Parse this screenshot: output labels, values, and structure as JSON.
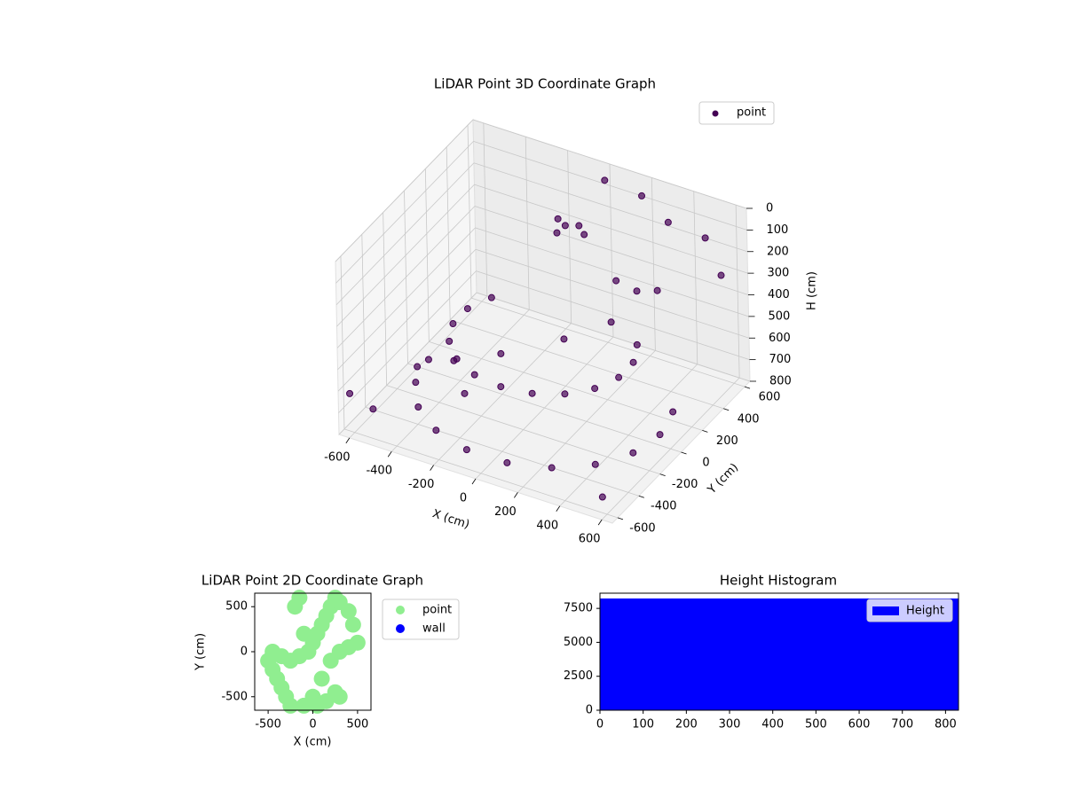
{
  "chart_data": [
    {
      "type": "scatter3d",
      "title": "LiDAR Point 3D Coordinate Graph",
      "xlabel": "X (cm)",
      "ylabel": "Y (cm)",
      "zlabel": "H (cm)",
      "xlim": [
        -650,
        650
      ],
      "ylim": [
        -650,
        650
      ],
      "zlim": [
        0,
        800
      ],
      "z_inverted": true,
      "xticks": [
        -600,
        -400,
        -200,
        0,
        200,
        400,
        600
      ],
      "yticks": [
        -600,
        -400,
        -200,
        0,
        200,
        400,
        600
      ],
      "zticks": [
        0,
        100,
        200,
        300,
        400,
        500,
        600,
        700,
        800
      ],
      "grid": true,
      "legend": "upper right",
      "series": [
        {
          "name": "point",
          "color": "#440154",
          "x": [
            -550,
            -517,
            -421,
            -275,
            -96,
            96,
            275,
            421,
            517,
            550,
            517,
            -346,
            -394,
            -394,
            -346,
            -257,
            -137,
            0,
            137,
            257,
            346,
            394,
            394,
            346,
            -150,
            -100,
            -50,
            -120,
            0,
            0,
            150,
            300,
            450,
            600,
            200,
            350,
            500,
            -600,
            -500,
            600,
            -450,
            -300,
            -200,
            -100,
            100,
            250
          ],
          "y": [
            0,
            -188,
            -354,
            -476,
            -542,
            -542,
            -476,
            -354,
            -188,
            0,
            188,
            200,
            69,
            -69,
            -200,
            -306,
            -376,
            -400,
            -376,
            -306,
            -200,
            -69,
            69,
            200,
            450,
            420,
            450,
            380,
            400,
            600,
            650,
            600,
            650,
            500,
            300,
            200,
            100,
            -640,
            -620,
            -640,
            -300,
            -250,
            -350,
            -200,
            0,
            150
          ],
          "z": [
            750,
            750,
            750,
            750,
            750,
            750,
            750,
            750,
            750,
            750,
            750,
            500,
            500,
            500,
            500,
            500,
            500,
            500,
            500,
            500,
            500,
            500,
            500,
            500,
            200,
            200,
            200,
            220,
            200,
            50,
            100,
            150,
            200,
            250,
            300,
            250,
            150,
            600,
            650,
            700,
            600,
            550,
            620,
            480,
            450,
            400
          ]
        }
      ]
    },
    {
      "type": "scatter",
      "title": "LiDAR Point 2D Coordinate Graph",
      "xlabel": "X (cm)",
      "ylabel": "Y (cm)",
      "xlim": [
        -650,
        650
      ],
      "ylim": [
        -650,
        650
      ],
      "xticks": [
        -500,
        0,
        500
      ],
      "yticks": [
        -500,
        0,
        500
      ],
      "legend": "outside right",
      "series": [
        {
          "name": "point",
          "color": "#90ee90",
          "x": [
            -500,
            -450,
            -400,
            -350,
            -300,
            -250,
            -450,
            -350,
            -250,
            -150,
            -50,
            0,
            50,
            100,
            150,
            200,
            250,
            300,
            400,
            450,
            500,
            400,
            300,
            200,
            100,
            0,
            -100,
            250,
            300,
            150,
            50,
            -100,
            -200,
            -150
          ],
          "y": [
            -100,
            -200,
            -300,
            -400,
            -500,
            -600,
            0,
            -50,
            -100,
            -50,
            0,
            100,
            200,
            300,
            400,
            500,
            600,
            550,
            450,
            300,
            100,
            50,
            0,
            -100,
            -300,
            -500,
            -600,
            -450,
            -500,
            -550,
            -600,
            200,
            500,
            600
          ]
        },
        {
          "name": "wall",
          "color": "#0000ff",
          "x": [],
          "y": []
        }
      ]
    },
    {
      "type": "histogram",
      "title": "Height Histogram",
      "xlim": [
        0,
        830
      ],
      "ylim": [
        0,
        8620
      ],
      "xticks": [
        0,
        100,
        200,
        300,
        400,
        500,
        600,
        700,
        800
      ],
      "yticks": [
        0,
        2500,
        5000,
        7500
      ],
      "legend": "upper right",
      "series": [
        {
          "name": "Height",
          "color": "#0000ff",
          "bins": [
            0,
            83,
            166,
            249,
            332,
            415,
            498,
            581,
            664,
            747,
            830
          ],
          "values": [
            8230,
            8230,
            8230,
            8230,
            8230,
            8230,
            8230,
            8230,
            8230,
            8230
          ]
        }
      ]
    }
  ]
}
